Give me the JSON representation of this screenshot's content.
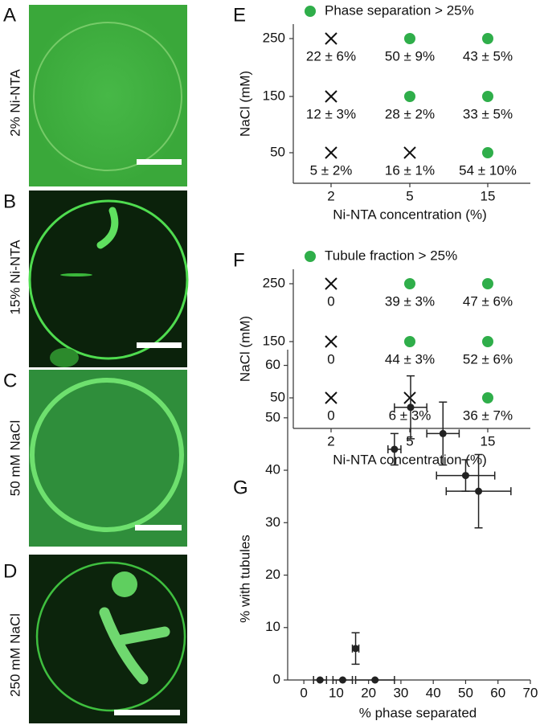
{
  "images": [
    {
      "letter": "A",
      "label": "2% Ni-NTA"
    },
    {
      "letter": "B",
      "label": "15% Ni-NTA"
    },
    {
      "letter": "C",
      "label": "50 mM NaCl"
    },
    {
      "letter": "D",
      "label": "250 mM NaCl"
    }
  ],
  "chart_data": [
    {
      "type": "matrix",
      "letter": "E",
      "legend": "Phase separation > 25%",
      "color": "#2fae4a",
      "xlabel": "Ni-NTA concentration (%)",
      "ylabel": "NaCl (mM)",
      "categories": [
        "2",
        "5",
        "15"
      ],
      "y_categories": [
        "250",
        "150",
        "50"
      ],
      "markers": [
        [
          "x",
          "dot",
          "dot"
        ],
        [
          "x",
          "dot",
          "dot"
        ],
        [
          "x",
          "x",
          "dot"
        ]
      ],
      "labels": [
        [
          "22 ± 6%",
          "50 ± 9%",
          "43 ± 5%"
        ],
        [
          "12 ± 3%",
          "28 ± 2%",
          "33 ± 5%"
        ],
        [
          "5 ± 2%",
          "16 ± 1%",
          "54 ± 10%"
        ]
      ]
    },
    {
      "type": "matrix",
      "letter": "F",
      "legend": "Tubule fraction > 25%",
      "color": "#2fae4a",
      "xlabel": "Ni-NTA concentration (%)",
      "ylabel": "NaCl (mM)",
      "categories": [
        "2",
        "5",
        "15"
      ],
      "y_categories": [
        "250",
        "150",
        "50"
      ],
      "markers": [
        [
          "x",
          "dot",
          "dot"
        ],
        [
          "x",
          "dot",
          "dot"
        ],
        [
          "x",
          "x",
          "dot"
        ]
      ],
      "labels": [
        [
          "0",
          "39 ± 3%",
          "47 ± 6%"
        ],
        [
          "0",
          "44 ± 3%",
          "52 ± 6%"
        ],
        [
          "0",
          "6 ± 3%",
          "36 ± 7%"
        ]
      ]
    },
    {
      "type": "scatter",
      "letter": "G",
      "color": "#222222",
      "xlabel": "% phase separated",
      "ylabel": "% with tubules",
      "x": [
        5,
        12,
        22,
        16,
        28,
        33,
        43,
        50,
        54
      ],
      "y": [
        0,
        0,
        0,
        6,
        44,
        52,
        47,
        39,
        36
      ],
      "x_err": [
        2,
        3,
        6,
        1,
        2,
        5,
        5,
        9,
        10
      ],
      "y_err": [
        0,
        0,
        0,
        3,
        3,
        6,
        6,
        3,
        7
      ],
      "xlim": [
        -5,
        70
      ],
      "xticks": [
        0,
        10,
        20,
        30,
        40,
        50,
        60,
        70
      ],
      "ylim": [
        0,
        63
      ],
      "yticks": [
        0,
        10,
        20,
        30,
        40,
        50,
        60
      ]
    }
  ]
}
